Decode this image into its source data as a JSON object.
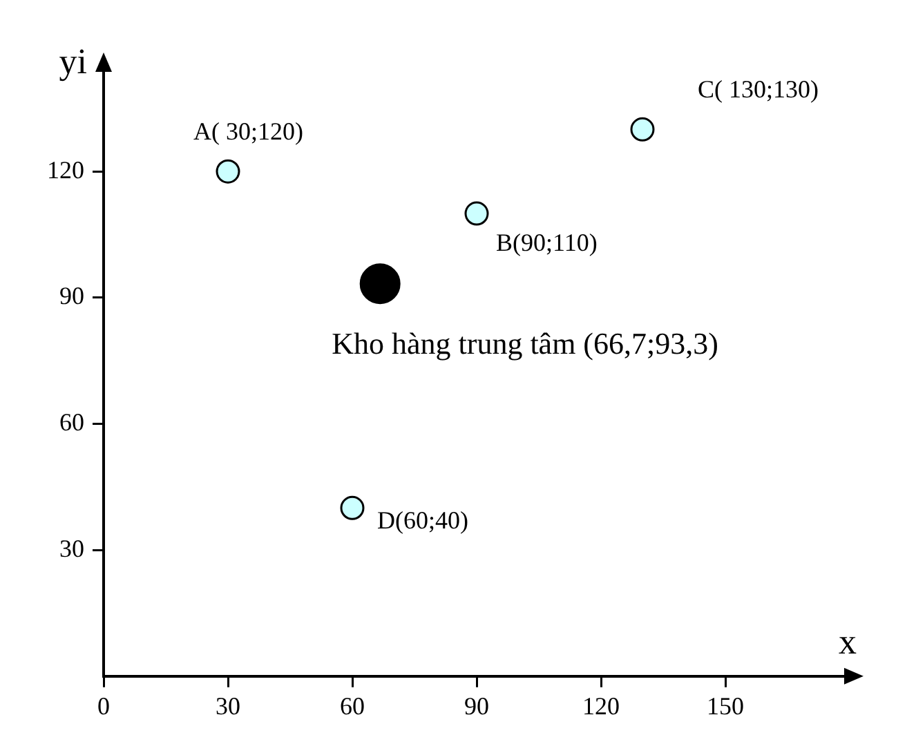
{
  "chart_data": {
    "type": "scatter",
    "xlabel": "x",
    "ylabel": "yi",
    "xlim": [
      0,
      180
    ],
    "ylim": [
      0,
      145
    ],
    "xticks": [
      0,
      30,
      60,
      90,
      120,
      150
    ],
    "yticks": [
      30,
      60,
      90,
      120
    ],
    "grid": false,
    "legend": false,
    "marker": "circle",
    "series": [
      {
        "color": "#ccffff",
        "x": [
          30,
          90,
          130,
          60
        ],
        "values": [
          120,
          110,
          130,
          40
        ]
      },
      {
        "color": "#000000",
        "x": [
          66.7
        ],
        "values": [
          93.3
        ]
      }
    ],
    "annotations": [
      {
        "text": "A( 30;120)",
        "x": 30,
        "y": 120
      },
      {
        "text": "B(90;110)",
        "x": 90,
        "y": 110
      },
      {
        "text": "C( 130;130)",
        "x": 130,
        "y": 130
      },
      {
        "text": "D(60;40)",
        "x": 60,
        "y": 40
      },
      {
        "text": "Kho hàng trung tâm (66,7;93,3)",
        "x": 66.7,
        "y": 93.3
      }
    ]
  }
}
